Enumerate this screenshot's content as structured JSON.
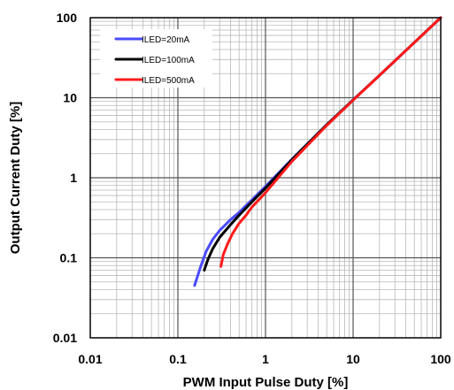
{
  "chart_data": {
    "type": "line",
    "title": "",
    "xlabel": "PWM Input Pulse Duty [%]",
    "ylabel": "Output Current Duty [%]",
    "x_scale": "log",
    "y_scale": "log",
    "xlim": [
      0.01,
      100
    ],
    "ylim": [
      0.01,
      100
    ],
    "x_ticks": [
      "0.01",
      "0.1",
      "1",
      "10",
      "100"
    ],
    "y_ticks": [
      "0.01",
      "0.1",
      "1",
      "10",
      "100"
    ],
    "grid": true,
    "legend_position": "top-left",
    "series": [
      {
        "name": "ILED=20mA",
        "color": "#4a4aff",
        "x": [
          0.155,
          0.18,
          0.21,
          0.25,
          0.3,
          0.4,
          0.5,
          0.7,
          1,
          2,
          5,
          10,
          20,
          50,
          100
        ],
        "y": [
          0.045,
          0.075,
          0.12,
          0.17,
          0.22,
          0.3,
          0.37,
          0.53,
          0.78,
          1.7,
          4.6,
          9.4,
          19,
          49,
          100
        ]
      },
      {
        "name": "ILED=100mA",
        "color": "#000000",
        "x": [
          0.2,
          0.22,
          0.25,
          0.3,
          0.4,
          0.5,
          0.7,
          1,
          2,
          5,
          10,
          20,
          50,
          100
        ],
        "y": [
          0.07,
          0.095,
          0.13,
          0.18,
          0.26,
          0.34,
          0.5,
          0.74,
          1.68,
          4.6,
          9.4,
          19,
          49,
          100
        ]
      },
      {
        "name": "ILED=500mA",
        "color": "#ff1a1a",
        "x": [
          0.31,
          0.33,
          0.37,
          0.42,
          0.5,
          0.6,
          0.7,
          1,
          2,
          5,
          10,
          20,
          50,
          100
        ],
        "y": [
          0.078,
          0.11,
          0.15,
          0.2,
          0.27,
          0.34,
          0.43,
          0.65,
          1.6,
          4.5,
          9.3,
          19,
          49,
          100
        ]
      }
    ]
  }
}
